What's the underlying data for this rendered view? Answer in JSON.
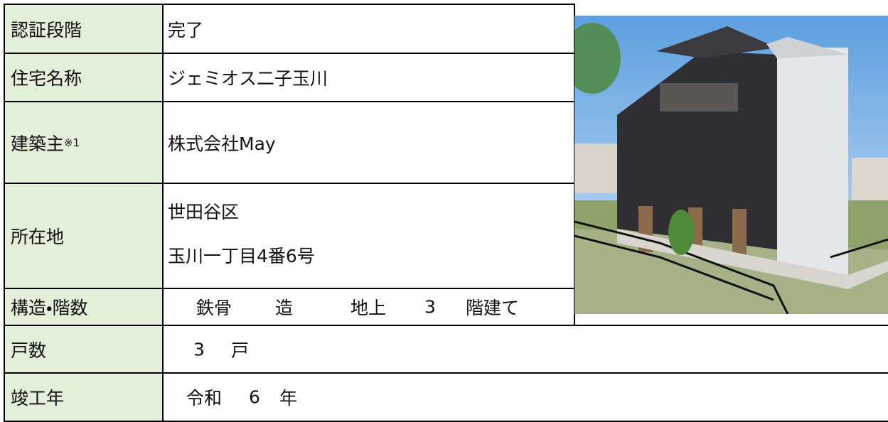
{
  "table": {
    "rows": [
      {
        "label": "認証段階",
        "value": [
          "完了"
        ]
      },
      {
        "label": "住宅名称",
        "value": [
          "ジェミオス二子玉川"
        ]
      },
      {
        "label": "建築主",
        "note": "※1",
        "value": [
          "株式会社May"
        ]
      },
      {
        "label": "所在地",
        "value": [
          "世田谷区",
          "玉川一丁目4番6号"
        ]
      },
      {
        "label": "構造・階数",
        "value": [
          "鉄骨",
          "造",
          "地上",
          "3",
          "階建て"
        ]
      },
      {
        "label": "戸数",
        "value": [
          "3",
          "戸"
        ]
      },
      {
        "label": "竣工年",
        "value": [
          "令和",
          "6",
          "年"
        ]
      }
    ]
  }
}
